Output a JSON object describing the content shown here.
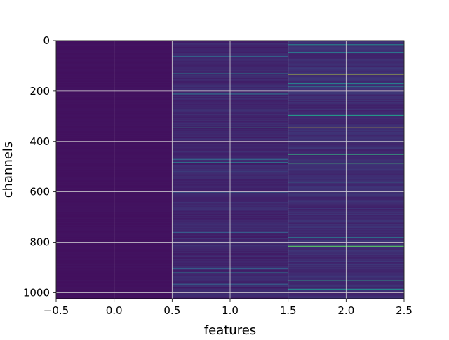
{
  "chart_data": {
    "type": "heatmap",
    "title": "",
    "xlabel": "features",
    "ylabel": "channels",
    "xlim": [
      -0.5,
      2.5
    ],
    "ylim": [
      1024,
      0
    ],
    "xticks": [
      -0.5,
      0.0,
      0.5,
      1.0,
      1.5,
      2.0,
      2.5
    ],
    "xtick_labels": [
      "−0.5",
      "0.0",
      "0.5",
      "1.0",
      "1.5",
      "2.0",
      "2.5"
    ],
    "yticks": [
      0,
      200,
      400,
      600,
      800,
      1000
    ],
    "ytick_labels": [
      "0",
      "200",
      "400",
      "600",
      "800",
      "1000"
    ],
    "grid": true,
    "colormap": "viridis",
    "n_channels": 1024,
    "features": [
      0,
      1,
      2
    ],
    "columns": [
      {
        "feature": 0,
        "base_level": 0.05,
        "highlights": []
      },
      {
        "feature": 1,
        "base_level": 0.11,
        "highlights": [
          {
            "channel": 62,
            "value": 0.32
          },
          {
            "channel": 130,
            "value": 0.42
          },
          {
            "channel": 210,
            "value": 0.36
          },
          {
            "channel": 270,
            "value": 0.3
          },
          {
            "channel": 345,
            "value": 0.56
          },
          {
            "channel": 470,
            "value": 0.32
          },
          {
            "channel": 482,
            "value": 0.36
          },
          {
            "channel": 520,
            "value": 0.28
          },
          {
            "channel": 600,
            "value": 0.3
          },
          {
            "channel": 760,
            "value": 0.28
          },
          {
            "channel": 905,
            "value": 0.3
          },
          {
            "channel": 920,
            "value": 0.38
          },
          {
            "channel": 965,
            "value": 0.3
          }
        ]
      },
      {
        "feature": 2,
        "base_level": 0.13,
        "highlights": [
          {
            "channel": 15,
            "value": 0.45
          },
          {
            "channel": 45,
            "value": 0.38
          },
          {
            "channel": 132,
            "value": 0.9
          },
          {
            "channel": 170,
            "value": 0.42
          },
          {
            "channel": 180,
            "value": 0.4
          },
          {
            "channel": 295,
            "value": 0.52
          },
          {
            "channel": 345,
            "value": 0.95
          },
          {
            "channel": 450,
            "value": 0.58
          },
          {
            "channel": 485,
            "value": 0.65
          },
          {
            "channel": 560,
            "value": 0.4
          },
          {
            "channel": 780,
            "value": 0.38
          },
          {
            "channel": 815,
            "value": 0.72
          },
          {
            "channel": 950,
            "value": 0.55
          },
          {
            "channel": 985,
            "value": 0.45
          }
        ]
      }
    ]
  }
}
